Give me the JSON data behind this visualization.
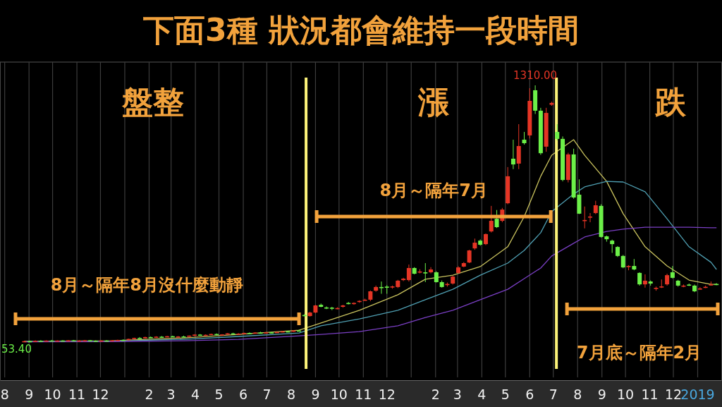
{
  "chart_data": {
    "type": "candlestick",
    "title": "下面3種 狀況都會維持一段時間",
    "x": [
      "2016-08-26",
      "2016-09-02",
      "2016-09-09",
      "2016-09-16",
      "2016-09-23",
      "2016-09-30",
      "2016-10-07",
      "2016-10-14",
      "2016-10-21",
      "2016-10-28",
      "2016-11-04",
      "2016-11-11",
      "2016-11-18",
      "2016-11-25",
      "2016-12-02",
      "2016-12-09",
      "2016-12-16",
      "2016-12-23",
      "2016-12-30",
      "2017-01-06",
      "2017-01-13",
      "2017-01-20",
      "2017-01-27",
      "2017-02-03",
      "2017-02-10",
      "2017-02-17",
      "2017-02-24",
      "2017-03-03",
      "2017-03-10",
      "2017-03-17",
      "2017-03-24",
      "2017-03-31",
      "2017-04-07",
      "2017-04-14",
      "2017-04-21",
      "2017-04-28",
      "2017-05-05",
      "2017-05-12",
      "2017-05-19",
      "2017-05-26",
      "2017-06-02",
      "2017-06-09",
      "2017-06-16",
      "2017-06-23",
      "2017-06-30",
      "2017-07-07",
      "2017-07-14",
      "2017-07-21",
      "2017-07-28",
      "2017-08-04",
      "2017-08-11",
      "2017-08-18",
      "2017-08-25",
      "2017-09-01",
      "2017-09-08",
      "2017-09-15",
      "2017-09-22",
      "2017-09-29",
      "2017-10-06",
      "2017-10-13",
      "2017-10-20",
      "2017-10-27",
      "2017-11-03",
      "2017-11-10",
      "2017-11-17",
      "2017-11-24",
      "2017-12-01",
      "2017-12-08",
      "2017-12-15",
      "2017-12-22",
      "2017-12-29",
      "2018-01-05",
      "2018-01-12",
      "2018-01-19",
      "2018-01-26",
      "2018-02-02",
      "2018-02-09",
      "2018-02-16",
      "2018-02-23",
      "2018-03-02",
      "2018-03-09",
      "2018-03-16",
      "2018-03-23",
      "2018-03-30",
      "2018-04-06",
      "2018-04-13",
      "2018-04-20",
      "2018-04-27",
      "2018-05-04",
      "2018-05-11",
      "2018-05-18",
      "2018-05-25",
      "2018-06-01",
      "2018-06-08",
      "2018-06-15",
      "2018-06-22",
      "2018-06-29",
      "2018-07-06",
      "2018-07-13",
      "2018-07-20",
      "2018-07-27",
      "2018-08-03",
      "2018-08-10",
      "2018-08-17",
      "2018-08-24",
      "2018-08-31",
      "2018-09-07",
      "2018-09-14",
      "2018-09-21",
      "2018-09-28",
      "2018-10-05",
      "2018-10-12",
      "2018-10-19",
      "2018-10-26",
      "2018-11-02",
      "2018-11-09",
      "2018-11-16",
      "2018-11-23",
      "2018-11-30",
      "2018-12-07",
      "2018-12-14",
      "2018-12-21",
      "2018-12-28",
      "2019-01-04",
      "2019-01-11",
      "2019-01-18",
      "2019-01-25"
    ],
    "ohlc": [
      [
        55,
        60,
        53.4,
        58
      ],
      [
        58,
        61,
        56,
        57
      ],
      [
        57,
        62,
        55,
        60
      ],
      [
        60,
        63,
        57,
        58
      ],
      [
        58,
        62,
        56,
        61
      ],
      [
        61,
        64,
        58,
        59
      ],
      [
        59,
        62,
        57,
        61
      ],
      [
        61,
        63,
        58,
        60
      ],
      [
        60,
        63,
        58,
        62
      ],
      [
        62,
        64,
        59,
        60
      ],
      [
        60,
        63,
        58,
        61
      ],
      [
        61,
        64,
        59,
        62
      ],
      [
        62,
        64,
        59,
        60
      ],
      [
        60,
        62,
        57,
        59
      ],
      [
        59,
        62,
        57,
        61
      ],
      [
        61,
        63,
        59,
        60
      ],
      [
        60,
        63,
        58,
        62
      ],
      [
        62,
        65,
        60,
        64
      ],
      [
        64,
        67,
        61,
        63
      ],
      [
        63,
        70,
        62,
        69
      ],
      [
        69,
        75,
        67,
        74
      ],
      [
        74,
        78,
        70,
        72
      ],
      [
        72,
        80,
        71,
        78
      ],
      [
        78,
        81,
        74,
        76
      ],
      [
        76,
        82,
        75,
        80
      ],
      [
        80,
        83,
        76,
        78
      ],
      [
        78,
        84,
        77,
        82
      ],
      [
        82,
        85,
        78,
        79
      ],
      [
        79,
        83,
        77,
        81
      ],
      [
        81,
        85,
        79,
        80
      ],
      [
        80,
        86,
        79,
        85
      ],
      [
        85,
        92,
        82,
        90
      ],
      [
        90,
        93,
        84,
        86
      ],
      [
        86,
        91,
        85,
        89
      ],
      [
        89,
        95,
        88,
        93
      ],
      [
        93,
        96,
        87,
        89
      ],
      [
        89,
        92,
        86,
        91
      ],
      [
        91,
        98,
        89,
        96
      ],
      [
        96,
        99,
        91,
        93
      ],
      [
        93,
        97,
        90,
        95
      ],
      [
        95,
        100,
        93,
        98
      ],
      [
        98,
        101,
        94,
        96
      ],
      [
        96,
        102,
        95,
        100
      ],
      [
        100,
        104,
        97,
        99
      ],
      [
        99,
        103,
        97,
        101
      ],
      [
        101,
        104,
        98,
        100
      ],
      [
        100,
        105,
        99,
        103
      ],
      [
        103,
        108,
        101,
        106
      ],
      [
        106,
        109,
        102,
        104
      ],
      [
        104,
        112,
        103,
        110
      ],
      [
        110,
        114,
        106,
        108
      ],
      [
        186,
        190,
        180,
        183
      ],
      [
        181,
        202,
        178,
        198
      ],
      [
        198,
        236,
        195,
        233
      ],
      [
        236,
        242,
        224,
        226
      ],
      [
        223,
        228,
        215,
        222
      ],
      [
        222,
        226,
        210,
        219
      ],
      [
        217,
        224,
        214,
        220
      ],
      [
        226,
        236,
        222,
        233
      ],
      [
        245,
        250,
        238,
        241
      ],
      [
        240,
        248,
        236,
        245
      ],
      [
        250,
        258,
        246,
        255
      ],
      [
        260,
        266,
        256,
        261
      ],
      [
        261,
        306,
        254,
        302
      ],
      [
        305,
        330,
        300,
        323
      ],
      [
        323,
        350,
        290,
        322
      ],
      [
        325,
        332,
        290,
        320
      ],
      [
        322,
        330,
        315,
        326
      ],
      [
        323,
        358,
        318,
        354
      ],
      [
        357,
        368,
        352,
        364
      ],
      [
        357,
        433,
        350,
        416
      ],
      [
        416,
        420,
        385,
        388
      ],
      [
        395,
        410,
        390,
        399
      ],
      [
        395,
        440,
        347,
        390
      ],
      [
        395,
        420,
        390,
        409
      ],
      [
        395,
        400,
        345,
        347
      ],
      [
        347,
        355,
        320,
        323
      ],
      [
        336,
        345,
        325,
        338
      ],
      [
        340,
        378,
        335,
        374
      ],
      [
        392,
        425,
        388,
        419
      ],
      [
        423,
        445,
        420,
        440
      ],
      [
        443,
        505,
        440,
        502
      ],
      [
        512,
        560,
        505,
        540
      ],
      [
        550,
        556,
        525,
        530
      ],
      [
        533,
        585,
        528,
        582
      ],
      [
        595,
        720,
        590,
        647
      ],
      [
        657,
        700,
        612,
        616
      ],
      [
        647,
        710,
        640,
        702
      ],
      [
        733,
        910,
        728,
        865
      ],
      [
        951,
        1044,
        900,
        923
      ],
      [
        927,
        1120,
        900,
        1013
      ],
      [
        1044,
        1082,
        1020,
        1027
      ],
      [
        1065,
        1296,
        1050,
        1234
      ],
      [
        1286,
        1310,
        1170,
        1186
      ],
      [
        1186,
        1200,
        970,
        978
      ],
      [
        1010,
        1200,
        985,
        1175
      ],
      [
        1215,
        1230,
        1210,
        1224
      ],
      [
        1082,
        1120,
        1040,
        1048
      ],
      [
        1048,
        1060,
        840,
        847
      ],
      [
        847,
        980,
        835,
        972
      ],
      [
        972,
        1000,
        755,
        761
      ],
      [
        775,
        850,
        680,
        682
      ],
      [
        648,
        717,
        610,
        651
      ],
      [
        665,
        685,
        640,
        668
      ],
      [
        685,
        745,
        680,
        723
      ],
      [
        720,
        728,
        565,
        568
      ],
      [
        571,
        575,
        545,
        557
      ],
      [
        550,
        555,
        490,
        533
      ],
      [
        519,
        523,
        470,
        475
      ],
      [
        475,
        480,
        415,
        419
      ],
      [
        422,
        430,
        405,
        426
      ],
      [
        426,
        460,
        405,
        409
      ],
      [
        392,
        395,
        330,
        336
      ],
      [
        336,
        385,
        320,
        354
      ],
      [
        350,
        355,
        330,
        340
      ],
      [
        316,
        325,
        305,
        319
      ],
      [
        322,
        360,
        318,
        326
      ],
      [
        336,
        388,
        330,
        381
      ],
      [
        395,
        426,
        365,
        368
      ],
      [
        354,
        358,
        325,
        330
      ],
      [
        326,
        335,
        322,
        330
      ],
      [
        335,
        340,
        328,
        333
      ],
      [
        330,
        335,
        298,
        302
      ],
      [
        313,
        322,
        310,
        316
      ],
      [
        320,
        330,
        318,
        324
      ],
      [
        333,
        350,
        330,
        336
      ],
      [
        338,
        342,
        332,
        336
      ]
    ],
    "colors": [
      "#e53525",
      "#6cf048",
      "#e53525",
      "#6cf048",
      "#e53525",
      "#6cf048",
      "#e53525",
      "#6cf048",
      "#e53525",
      "#6cf048",
      "#e53525",
      "#e53525",
      "#6cf048",
      "#6cf048",
      "#e53525",
      "#6cf048",
      "#e53525",
      "#e53525",
      "#6cf048",
      "#e53525",
      "#e53525",
      "#6cf048",
      "#e53525",
      "#6cf048",
      "#e53525",
      "#6cf048",
      "#e53525",
      "#6cf048",
      "#e53525",
      "#6cf048",
      "#e53525",
      "#e53525",
      "#6cf048",
      "#e53525",
      "#e53525",
      "#6cf048",
      "#e53525",
      "#e53525",
      "#6cf048",
      "#e53525",
      "#e53525",
      "#6cf048",
      "#e53525",
      "#6cf048",
      "#e53525",
      "#6cf048",
      "#e53525",
      "#e53525",
      "#6cf048",
      "#e53525",
      "#6cf048",
      "#6cf048",
      "#e53525",
      "#e53525",
      "#6cf048",
      "#6cf048",
      "#6cf048",
      "#e53525",
      "#e53525",
      "#6cf048",
      "#e53525",
      "#e53525",
      "#e53525",
      "#e53525",
      "#e53525",
      "#6cf048",
      "#6cf048",
      "#e53525",
      "#e53525",
      "#e53525",
      "#e53525",
      "#6cf048",
      "#e53525",
      "#6cf048",
      "#e53525",
      "#6cf048",
      "#6cf048",
      "#e53525",
      "#e53525",
      "#e53525",
      "#e53525",
      "#e53525",
      "#e53525",
      "#6cf048",
      "#e53525",
      "#e53525",
      "#6cf048",
      "#e53525",
      "#e53525",
      "#6cf048",
      "#e53525",
      "#6cf048",
      "#e53525",
      "#6cf048",
      "#6cf048",
      "#e53525",
      "#e53525",
      "#6cf048",
      "#6cf048",
      "#e53525",
      "#6cf048",
      "#6cf048",
      "#e53525",
      "#e53525",
      "#e53525",
      "#6cf048",
      "#6cf048",
      "#6cf048",
      "#6cf048",
      "#6cf048",
      "#e53525",
      "#6cf048",
      "#6cf048",
      "#e53525",
      "#6cf048",
      "#e53525",
      "#e53525",
      "#e53525",
      "#6cf048",
      "#6cf048",
      "#e53525",
      "#6cf048",
      "#6cf048",
      "#e53525",
      "#e53525",
      "#e53525",
      "#6cf048"
    ],
    "series": [
      {
        "type": "line",
        "color": "#c9c25e",
        "x": [
          "2016-08-26",
          "2016-12-16",
          "2017-03-17",
          "2017-05-26",
          "2017-08-11",
          "2017-09-08",
          "2017-10-27",
          "2017-12-15",
          "2018-01-19",
          "2018-02-23",
          "2018-03-30",
          "2018-05-04",
          "2018-05-25",
          "2018-06-15",
          "2018-06-29",
          "2018-07-27",
          "2018-08-10",
          "2018-09-07",
          "2018-09-28",
          "2018-10-26",
          "2018-11-23",
          "2018-12-21",
          "2019-01-18",
          "2019-01-25"
        ],
        "values": [
          57,
          60,
          74,
          91,
          112,
          147,
          209,
          285,
          361,
          381,
          423,
          520,
          668,
          865,
          968,
          1044,
          968,
          840,
          682,
          520,
          426,
          357,
          336,
          336
        ]
      },
      {
        "type": "line",
        "color": "#4f9fb2",
        "x": [
          "2016-08-26",
          "2016-12-16",
          "2017-03-17",
          "2017-05-26",
          "2017-08-11",
          "2017-09-08",
          "2017-10-27",
          "2017-12-15",
          "2018-01-19",
          "2018-02-23",
          "2018-03-30",
          "2018-05-04",
          "2018-05-25",
          "2018-06-15",
          "2018-06-29",
          "2018-07-27",
          "2018-08-10",
          "2018-09-07",
          "2018-09-28",
          "2018-10-26",
          "2018-11-23",
          "2018-12-21",
          "2019-01-18",
          "2019-01-25"
        ],
        "values": [
          56,
          58,
          67,
          81,
          98,
          133,
          167,
          209,
          261,
          312,
          381,
          440,
          502,
          589,
          692,
          778,
          813,
          840,
          837,
          789,
          657,
          520,
          444,
          409
        ]
      },
      {
        "type": "line",
        "color": "#7a3fc4",
        "x": [
          "2016-08-26",
          "2016-12-16",
          "2017-03-17",
          "2017-05-26",
          "2017-08-11",
          "2017-09-08",
          "2017-10-27",
          "2017-12-15",
          "2018-01-19",
          "2018-02-23",
          "2018-03-30",
          "2018-05-04",
          "2018-05-25",
          "2018-06-15",
          "2018-06-29",
          "2018-07-27",
          "2018-08-10",
          "2018-09-07",
          "2018-09-28",
          "2018-10-26",
          "2018-11-23",
          "2018-12-21",
          "2019-01-18",
          "2019-01-25"
        ],
        "values": [
          55,
          56,
          60,
          67,
          84,
          91,
          105,
          133,
          174,
          209,
          261,
          312,
          364,
          416,
          475,
          537,
          568,
          595,
          606,
          616,
          616,
          616,
          613,
          613
        ]
      }
    ],
    "xlim": [
      "2016-07-26",
      "2019-02-01"
    ],
    "xticks": [
      {
        "value": "2016-08-01",
        "label": "8"
      },
      {
        "value": "2016-09-01",
        "label": "9"
      },
      {
        "value": "2016-10-01",
        "label": "10"
      },
      {
        "value": "2016-11-01",
        "label": "11"
      },
      {
        "value": "2016-12-01",
        "label": "12"
      },
      {
        "value": "2017-01-01",
        "label": null
      },
      {
        "value": "2017-02-01",
        "label": "2"
      },
      {
        "value": "2017-03-01",
        "label": "3"
      },
      {
        "value": "2017-04-01",
        "label": "4"
      },
      {
        "value": "2017-05-01",
        "label": "5"
      },
      {
        "value": "2017-06-01",
        "label": "6"
      },
      {
        "value": "2017-07-01",
        "label": "7"
      },
      {
        "value": "2017-08-01",
        "label": "8"
      },
      {
        "value": "2017-09-01",
        "label": "9"
      },
      {
        "value": "2017-10-01",
        "label": "10"
      },
      {
        "value": "2017-11-01",
        "label": "11"
      },
      {
        "value": "2017-12-01",
        "label": "12"
      },
      {
        "value": "2018-01-01",
        "label": null
      },
      {
        "value": "2018-02-01",
        "label": "2"
      },
      {
        "value": "2018-03-01",
        "label": "3"
      },
      {
        "value": "2018-04-01",
        "label": "4"
      },
      {
        "value": "2018-05-01",
        "label": "5"
      },
      {
        "value": "2018-06-01",
        "label": "6"
      },
      {
        "value": "2018-07-01",
        "label": "7"
      },
      {
        "value": "2018-08-01",
        "label": "8"
      },
      {
        "value": "2018-09-01",
        "label": "9"
      },
      {
        "value": "2018-10-01",
        "label": "10"
      },
      {
        "value": "2018-11-01",
        "label": "11"
      },
      {
        "value": "2018-12-01",
        "label": "12"
      },
      {
        "value": "2019-01-01",
        "label": "2019"
      }
    ],
    "grid": "x",
    "tick_labels": "x",
    "ref_lines": [
      {
        "axis": "x",
        "value": "2017-08-20",
        "color": "#fdf47a"
      },
      {
        "axis": "x",
        "value": "2018-07-05",
        "color": "#fdf47a"
      }
    ],
    "annotations": [
      "盤整",
      "漲",
      "跌",
      "8月～隔年8月沒什麼動靜",
      "8月～隔年7月",
      "7月底～隔年2月",
      {
        "text": "53.40",
        "x": "2016-08-26",
        "y": 53.4
      },
      {
        "text": "1310.00",
        "x": "2018-06-08",
        "y": 1310
      }
    ]
  }
}
